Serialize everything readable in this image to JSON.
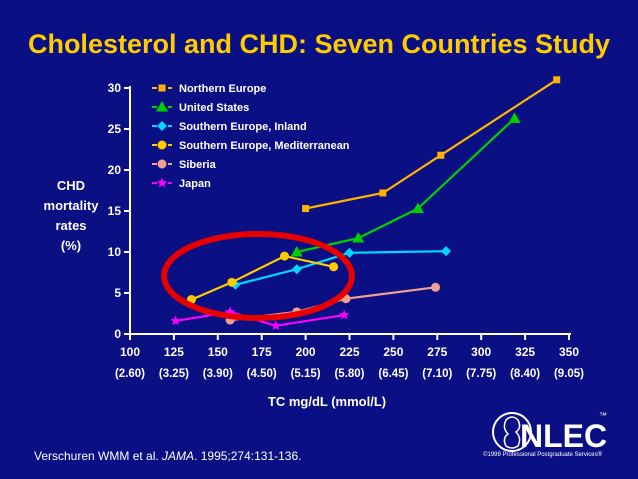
{
  "slide": {
    "title": "Cholesterol and CHD: Seven Countries Study",
    "citation_prefix": "Verschuren WMM et al. ",
    "citation_journal": "JAMA",
    "citation_suffix": ". 1995;274:131-136.",
    "logo_text": "NLEC",
    "logo_tm": "™",
    "copyright": "©1999 Professional Postgraduate Services®"
  },
  "colors": {
    "background": "#0a0f84",
    "title": "#ffcc00",
    "text": "#ffffff",
    "highlight_ring": "#e60000"
  },
  "chart_data": {
    "type": "line",
    "ylabel_lines": [
      "CHD",
      "mortality",
      "rates",
      "(%)"
    ],
    "xlabel": "TC mg/dL (mmol/L)",
    "xlim": [
      100,
      350
    ],
    "ylim": [
      0,
      30
    ],
    "x_ticks": [
      100,
      125,
      150,
      175,
      200,
      225,
      250,
      275,
      300,
      325,
      350
    ],
    "x_ticks_mmol": [
      "(2.60)",
      "(3.25)",
      "(3.90)",
      "(4.50)",
      "(5.15)",
      "(5.80)",
      "(6.45)",
      "(7.10)",
      "(7.75)",
      "(8.40)",
      "(9.05)"
    ],
    "y_ticks": [
      0,
      5,
      10,
      15,
      20,
      25,
      30
    ],
    "grid": false,
    "legend_position": "top-left",
    "series": [
      {
        "name": "Northern Europe",
        "color": "#ffb300",
        "marker": "square",
        "x": [
          200,
          244,
          277,
          343
        ],
        "y": [
          15.3,
          17.2,
          21.8,
          31.0
        ]
      },
      {
        "name": "United States",
        "color": "#00d000",
        "marker": "triangle",
        "x": [
          195,
          230,
          264,
          319
        ],
        "y": [
          10.0,
          11.7,
          15.3,
          26.3
        ]
      },
      {
        "name": "Southern Europe, Inland",
        "color": "#00d8ff",
        "marker": "diamond",
        "x": [
          160,
          195,
          225,
          280
        ],
        "y": [
          6.0,
          7.9,
          9.9,
          10.1
        ]
      },
      {
        "name": "Southern Europe, Mediterranean",
        "color": "#ffcc00",
        "marker": "circle",
        "x": [
          135,
          158,
          188,
          216
        ],
        "y": [
          4.2,
          6.3,
          9.5,
          8.2
        ]
      },
      {
        "name": "Siberia",
        "color": "#f0a090",
        "marker": "circle",
        "x": [
          157,
          195,
          223,
          274
        ],
        "y": [
          1.7,
          2.7,
          4.3,
          5.7
        ]
      },
      {
        "name": "Japan",
        "color": "#ff00ff",
        "marker": "star",
        "x": [
          126,
          157,
          183,
          222
        ],
        "y": [
          1.6,
          2.7,
          1.0,
          2.3
        ]
      }
    ]
  }
}
